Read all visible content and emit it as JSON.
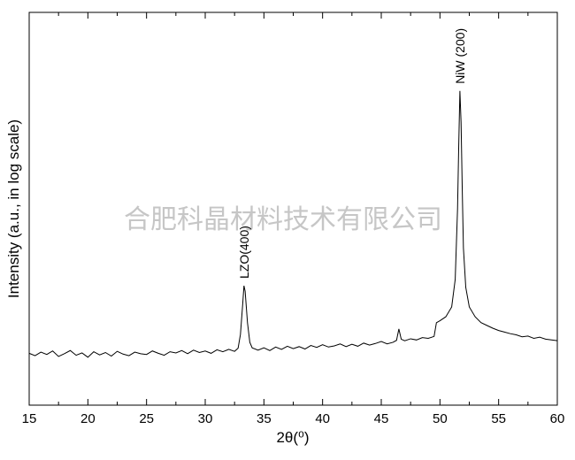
{
  "chart_data": {
    "type": "line",
    "xlabel": "2θ(⁰)",
    "ylabel": "Intensity (a.u., in log scale)",
    "watermark": "合肥科晶材料技术有限公司",
    "annotations": [
      {
        "text": "LZO(400)",
        "x": 33.3
      },
      {
        "text": "NiW (200)",
        "x": 51.7
      }
    ],
    "xlim": [
      15,
      60
    ],
    "xticks": [
      15,
      20,
      25,
      30,
      35,
      40,
      45,
      50,
      55,
      60
    ],
    "ylim": [
      0,
      100
    ],
    "series": [
      {
        "color": "#000000",
        "x": [
          15,
          15.5,
          16,
          16.5,
          17,
          17.5,
          18,
          18.5,
          19,
          19.5,
          20,
          20.5,
          21,
          21.5,
          22,
          22.5,
          23,
          23.5,
          24,
          24.5,
          25,
          25.5,
          26,
          26.5,
          27,
          27.5,
          28,
          28.5,
          29,
          29.5,
          30,
          30.5,
          31,
          31.5,
          32,
          32.5,
          32.8,
          33.0,
          33.2,
          33.3,
          33.4,
          33.6,
          33.8,
          34.0,
          34.5,
          35,
          35.5,
          36,
          36.5,
          37,
          37.5,
          38,
          38.5,
          39,
          39.5,
          40,
          40.5,
          41,
          41.5,
          42,
          42.5,
          43,
          43.5,
          44,
          44.5,
          45,
          45.5,
          46,
          46.3,
          46.5,
          46.7,
          47,
          47.5,
          48,
          48.5,
          49,
          49.5,
          49.7,
          50,
          50.5,
          51,
          51.3,
          51.5,
          51.6,
          51.7,
          51.8,
          51.9,
          52.0,
          52.2,
          52.5,
          53,
          53.5,
          54,
          54.5,
          55,
          55.5,
          56,
          56.5,
          57,
          57.5,
          58,
          58.5,
          59,
          59.5,
          60
        ],
        "values": [
          13.2,
          12.6,
          13.5,
          12.9,
          13.8,
          12.4,
          13.1,
          13.9,
          12.7,
          13.3,
          12.2,
          13.6,
          12.8,
          13.4,
          12.5,
          13.7,
          13.0,
          12.6,
          13.5,
          13.1,
          12.9,
          13.8,
          13.2,
          12.7,
          13.6,
          13.3,
          13.9,
          13.1,
          14.0,
          13.4,
          13.8,
          13.2,
          14.1,
          13.6,
          14.2,
          13.7,
          14.5,
          18,
          26,
          30.4,
          29,
          21,
          16,
          14.6,
          14.0,
          14.6,
          13.9,
          14.8,
          14.2,
          15.0,
          14.4,
          14.9,
          14.3,
          15.2,
          14.7,
          15.4,
          14.8,
          15.1,
          15.6,
          14.9,
          15.5,
          15.0,
          15.8,
          15.3,
          15.7,
          16.2,
          15.6,
          16.0,
          16.5,
          19.4,
          16.8,
          16.4,
          16.9,
          16.6,
          17.2,
          17.0,
          17.5,
          21,
          21.5,
          22.5,
          25,
          32,
          50,
          66,
          80,
          72,
          55,
          40,
          30,
          25,
          22.5,
          21.0,
          20.3,
          19.6,
          19.0,
          18.6,
          18.2,
          17.9,
          17.4,
          17.6,
          17.0,
          17.3,
          16.8,
          16.6,
          16.4
        ]
      }
    ]
  }
}
